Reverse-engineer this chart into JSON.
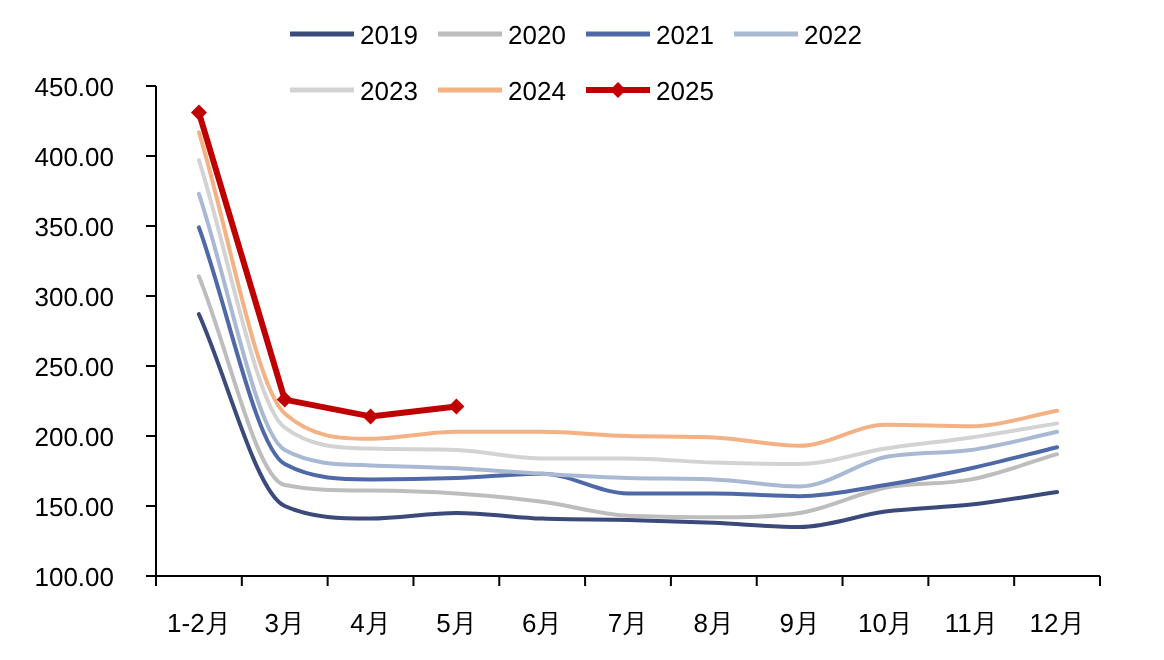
{
  "chart_data": {
    "type": "line",
    "categories": [
      "1-2月",
      "3月",
      "4月",
      "5月",
      "6月",
      "7月",
      "8月",
      "9月",
      "10月",
      "11月",
      "12月"
    ],
    "ylim": [
      100,
      450
    ],
    "yticks": [
      {
        "value": 100,
        "label": "100.00"
      },
      {
        "value": 150,
        "label": "150.00"
      },
      {
        "value": 200,
        "label": "200.00"
      },
      {
        "value": 250,
        "label": "250.00"
      },
      {
        "value": 300,
        "label": "300.00"
      },
      {
        "value": 350,
        "label": "350.00"
      },
      {
        "value": 400,
        "label": "400.00"
      },
      {
        "value": 450,
        "label": "450.00"
      }
    ],
    "legend": "top",
    "grid": false,
    "series": [
      {
        "name": "2019",
        "color": "#3b4a7a",
        "values": [
          287,
          150,
          141,
          145,
          141,
          140,
          138,
          135,
          146,
          151,
          160
        ]
      },
      {
        "name": "2020",
        "color": "#bdbdbd",
        "values": [
          314,
          165,
          161,
          159,
          153,
          143,
          142,
          145,
          163,
          169,
          187
        ]
      },
      {
        "name": "2021",
        "color": "#4f68a8",
        "values": [
          349,
          180,
          169,
          170,
          173,
          159,
          159,
          157,
          165,
          177,
          192
        ]
      },
      {
        "name": "2022",
        "color": "#a9b9d4",
        "values": [
          373,
          190,
          179,
          177,
          173,
          170,
          169,
          164,
          185,
          190,
          203
        ]
      },
      {
        "name": "2023",
        "color": "#d3d3d3",
        "values": [
          397,
          206,
          191,
          190,
          184,
          184,
          181,
          180,
          191,
          199,
          209
        ]
      },
      {
        "name": "2024",
        "color": "#f4b183",
        "values": [
          417,
          216,
          198,
          203,
          203,
          200,
          199,
          193,
          208,
          207,
          218
        ]
      },
      {
        "name": "2025",
        "color": "#c00000",
        "marker": "diamond",
        "values": [
          431,
          226,
          214,
          221,
          null,
          null,
          null,
          null,
          null,
          null,
          null
        ]
      }
    ]
  }
}
